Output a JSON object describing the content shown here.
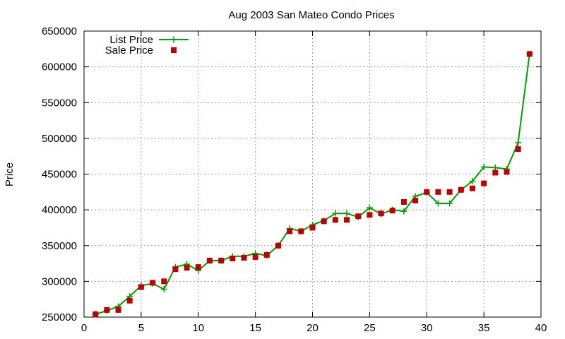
{
  "chart_data": {
    "type": "line",
    "title": "Aug 2003 San Mateo Condo Prices",
    "xlabel": "",
    "ylabel": "Price",
    "xlim": [
      0,
      40
    ],
    "ylim": [
      250000,
      650000
    ],
    "xticks": [
      0,
      5,
      10,
      15,
      20,
      25,
      30,
      35,
      40
    ],
    "yticks": [
      250000,
      300000,
      350000,
      400000,
      450000,
      500000,
      550000,
      600000,
      650000
    ],
    "grid": true,
    "legend_position": "top-left",
    "series": [
      {
        "name": "List Price",
        "style": "line-with-plus-markers",
        "color": "#00a000",
        "x": [
          1,
          2,
          3,
          4,
          5,
          6,
          7,
          8,
          9,
          10,
          11,
          12,
          13,
          14,
          15,
          16,
          17,
          18,
          19,
          20,
          21,
          22,
          23,
          24,
          25,
          26,
          27,
          28,
          29,
          30,
          31,
          32,
          33,
          34,
          35,
          36,
          37,
          38,
          39
        ],
        "y": [
          254000,
          259000,
          265000,
          279000,
          294000,
          297000,
          289000,
          320000,
          324000,
          315000,
          329000,
          329000,
          335000,
          335000,
          339000,
          336000,
          350000,
          374000,
          370000,
          379000,
          385000,
          395000,
          395000,
          390000,
          403000,
          394000,
          400000,
          398000,
          419000,
          424000,
          409000,
          409000,
          428000,
          440000,
          460000,
          459000,
          457000,
          494000,
          618000
        ]
      },
      {
        "name": "Sale Price",
        "style": "square-markers",
        "color": "#c00000",
        "x": [
          1,
          2,
          3,
          4,
          5,
          6,
          7,
          8,
          9,
          10,
          11,
          12,
          13,
          14,
          15,
          16,
          17,
          18,
          19,
          20,
          21,
          22,
          23,
          24,
          25,
          26,
          27,
          28,
          29,
          30,
          31,
          32,
          33,
          34,
          35,
          36,
          37,
          38,
          39
        ],
        "y": [
          254000,
          260000,
          260000,
          273000,
          292000,
          298000,
          300000,
          317000,
          319000,
          320000,
          329000,
          329000,
          332000,
          333000,
          334000,
          337000,
          350000,
          370000,
          370000,
          375000,
          384000,
          386000,
          386000,
          391000,
          393000,
          395000,
          399000,
          411000,
          413000,
          425000,
          425000,
          425000,
          428000,
          430000,
          437000,
          452000,
          453000,
          485000,
          618000
        ]
      }
    ]
  }
}
